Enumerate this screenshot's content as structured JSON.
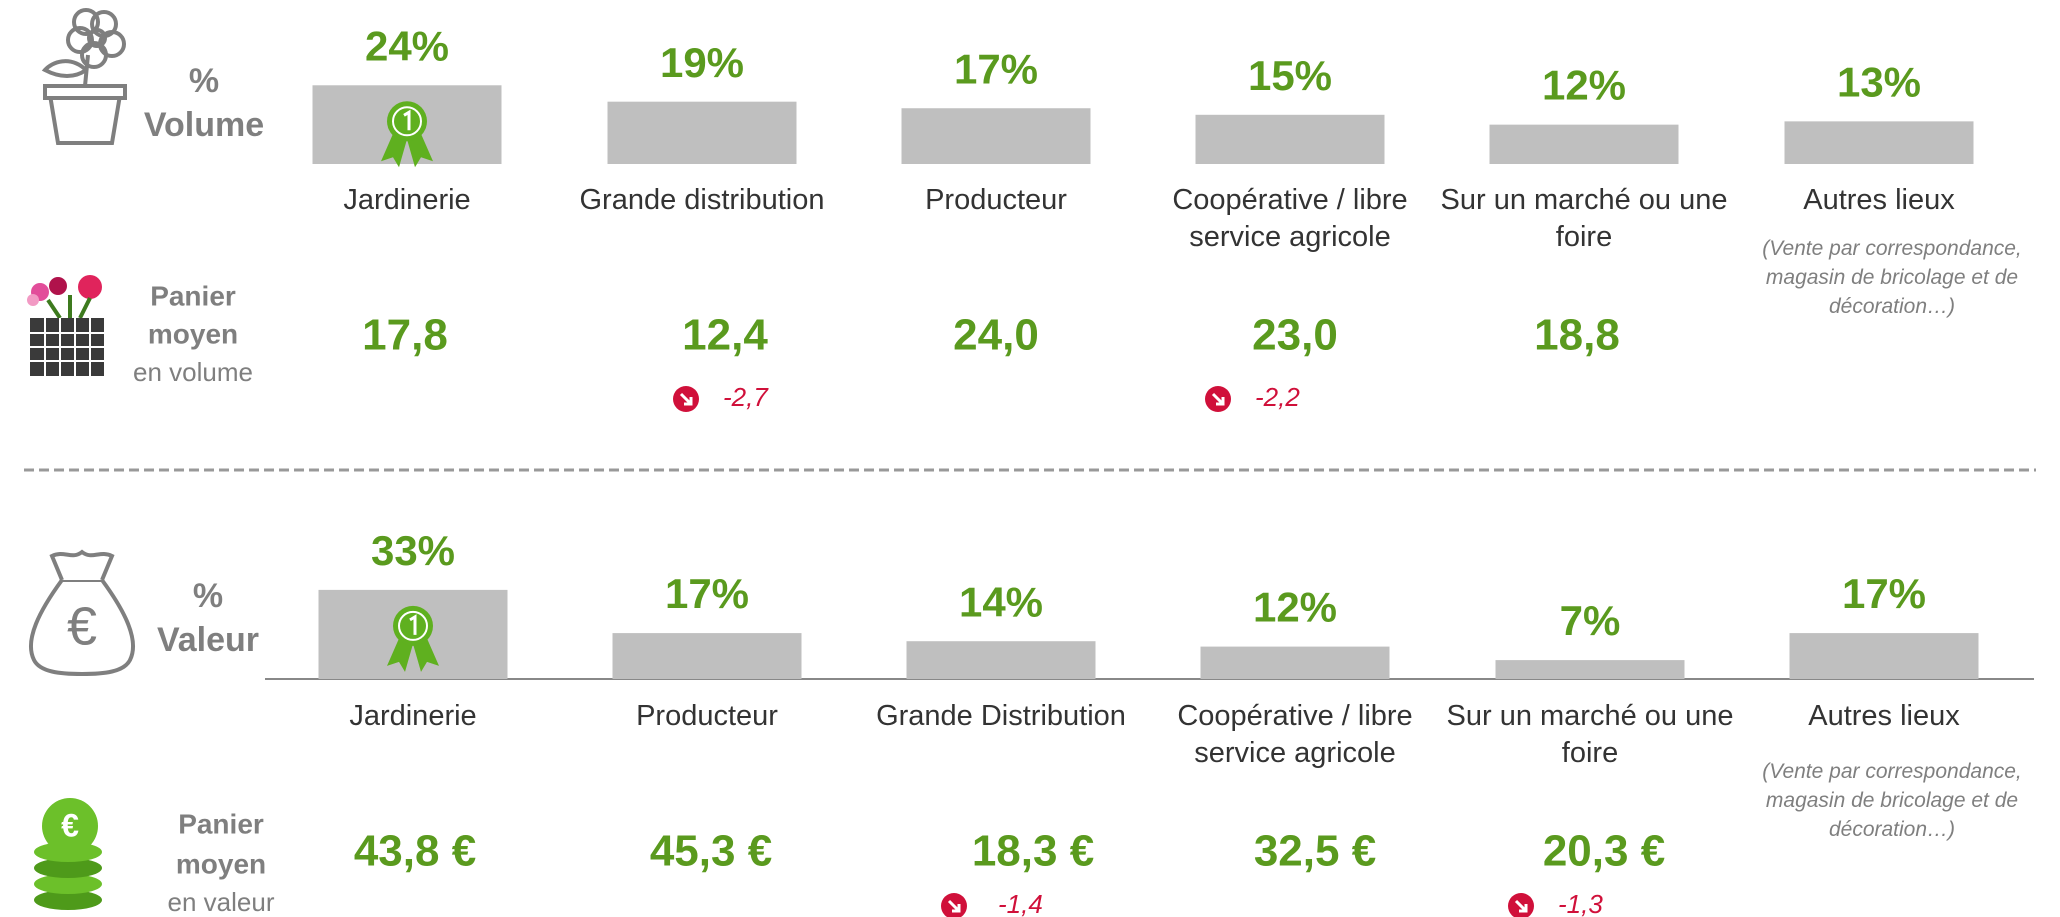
{
  "chart_data": [
    {
      "type": "bar",
      "title": "%",
      "subtitle": "Volume",
      "categories": [
        "Jardinerie",
        "Grande distribution",
        "Producteur",
        "Coopérative / libre service agricole",
        "Sur un marché ou une foire",
        "Autres lieux"
      ],
      "values": [
        24,
        19,
        17,
        15,
        12,
        13
      ],
      "value_labels": [
        "24%",
        "19%",
        "17%",
        "15%",
        "12%",
        "13%"
      ],
      "color": "#bfbfbf",
      "note": [
        "(Vente par correspondance,",
        "magasin de bricolage et de",
        "décoration…)"
      ],
      "basket": {
        "title": "Panier",
        "subtitle": "moyen",
        "caption": "en volume",
        "values": [
          "17,8",
          "12,4",
          "24,0",
          "23,0",
          "18,8",
          null
        ],
        "changes": [
          null,
          "-2,7",
          null,
          "-2,2",
          null,
          null
        ]
      }
    },
    {
      "type": "bar",
      "title": "%",
      "subtitle": "Valeur",
      "categories": [
        "Jardinerie",
        "Producteur",
        "Grande Distribution",
        "Coopérative / libre service agricole",
        "Sur un marché ou une foire",
        "Autres lieux"
      ],
      "values": [
        33,
        17,
        14,
        12,
        7,
        17
      ],
      "value_labels": [
        "33%",
        "17%",
        "14%",
        "12%",
        "7%",
        "17%"
      ],
      "color": "#bfbfbf",
      "note": [
        "(Vente par correspondance,",
        "magasin de bricolage et de",
        "décoration…)"
      ],
      "basket": {
        "title": "Panier",
        "subtitle": "moyen",
        "caption": "en valeur",
        "values": [
          "43,8 €",
          "45,3 €",
          "18,3 €",
          "32,5 €",
          "20,3 €",
          null
        ],
        "changes": [
          null,
          null,
          "-1,4",
          null,
          "-1,3",
          null
        ]
      }
    }
  ]
}
